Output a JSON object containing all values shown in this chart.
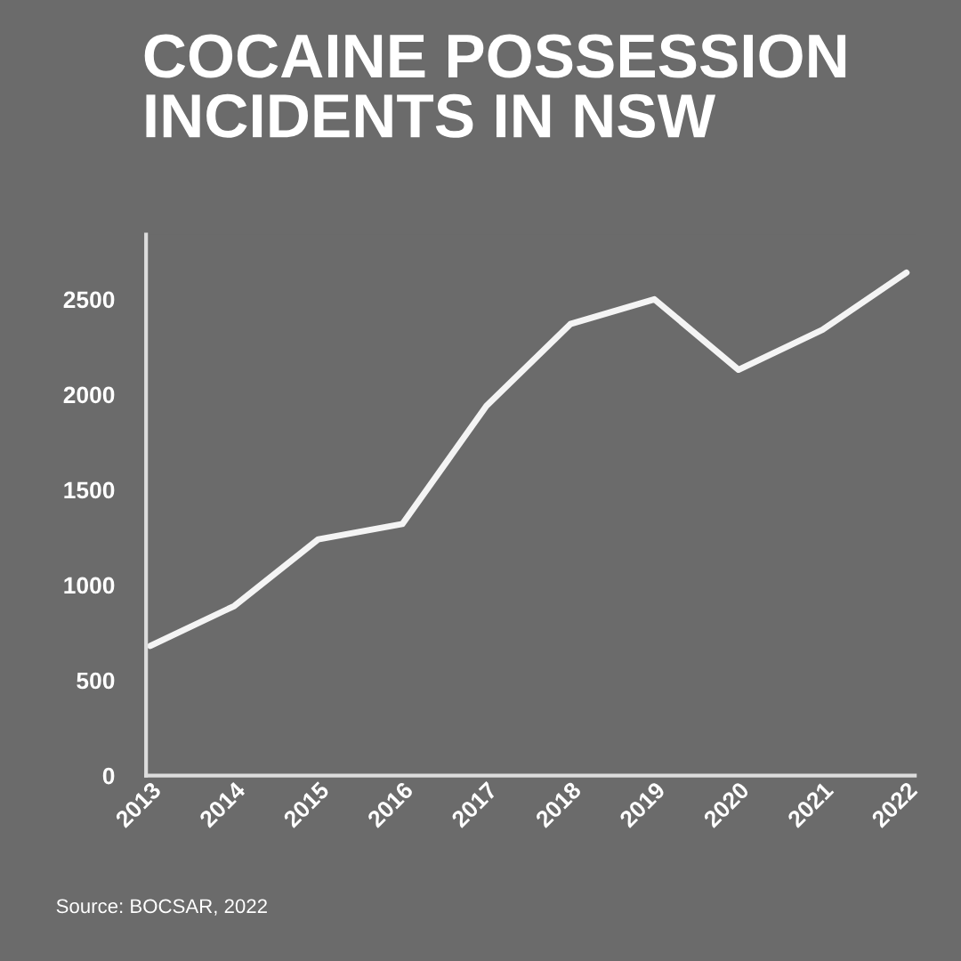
{
  "chart_data": {
    "type": "line",
    "title": "COCAINE POSSESSION\nINCIDENTS IN NSW",
    "categories": [
      "2013",
      "2014",
      "2015",
      "2016",
      "2017",
      "2018",
      "2019",
      "2020",
      "2021",
      "2022"
    ],
    "values": [
      680,
      890,
      1240,
      1320,
      1940,
      2370,
      2500,
      2130,
      2340,
      2640
    ],
    "color": "#f4f4f4",
    "ylim": [
      0,
      2840
    ],
    "yticks": [
      0,
      500,
      1000,
      1500,
      2000,
      2500
    ],
    "grid": false,
    "marker": "none",
    "line_style": "solid",
    "annotations": [
      "Source: BOCSAR, 2022"
    ]
  }
}
